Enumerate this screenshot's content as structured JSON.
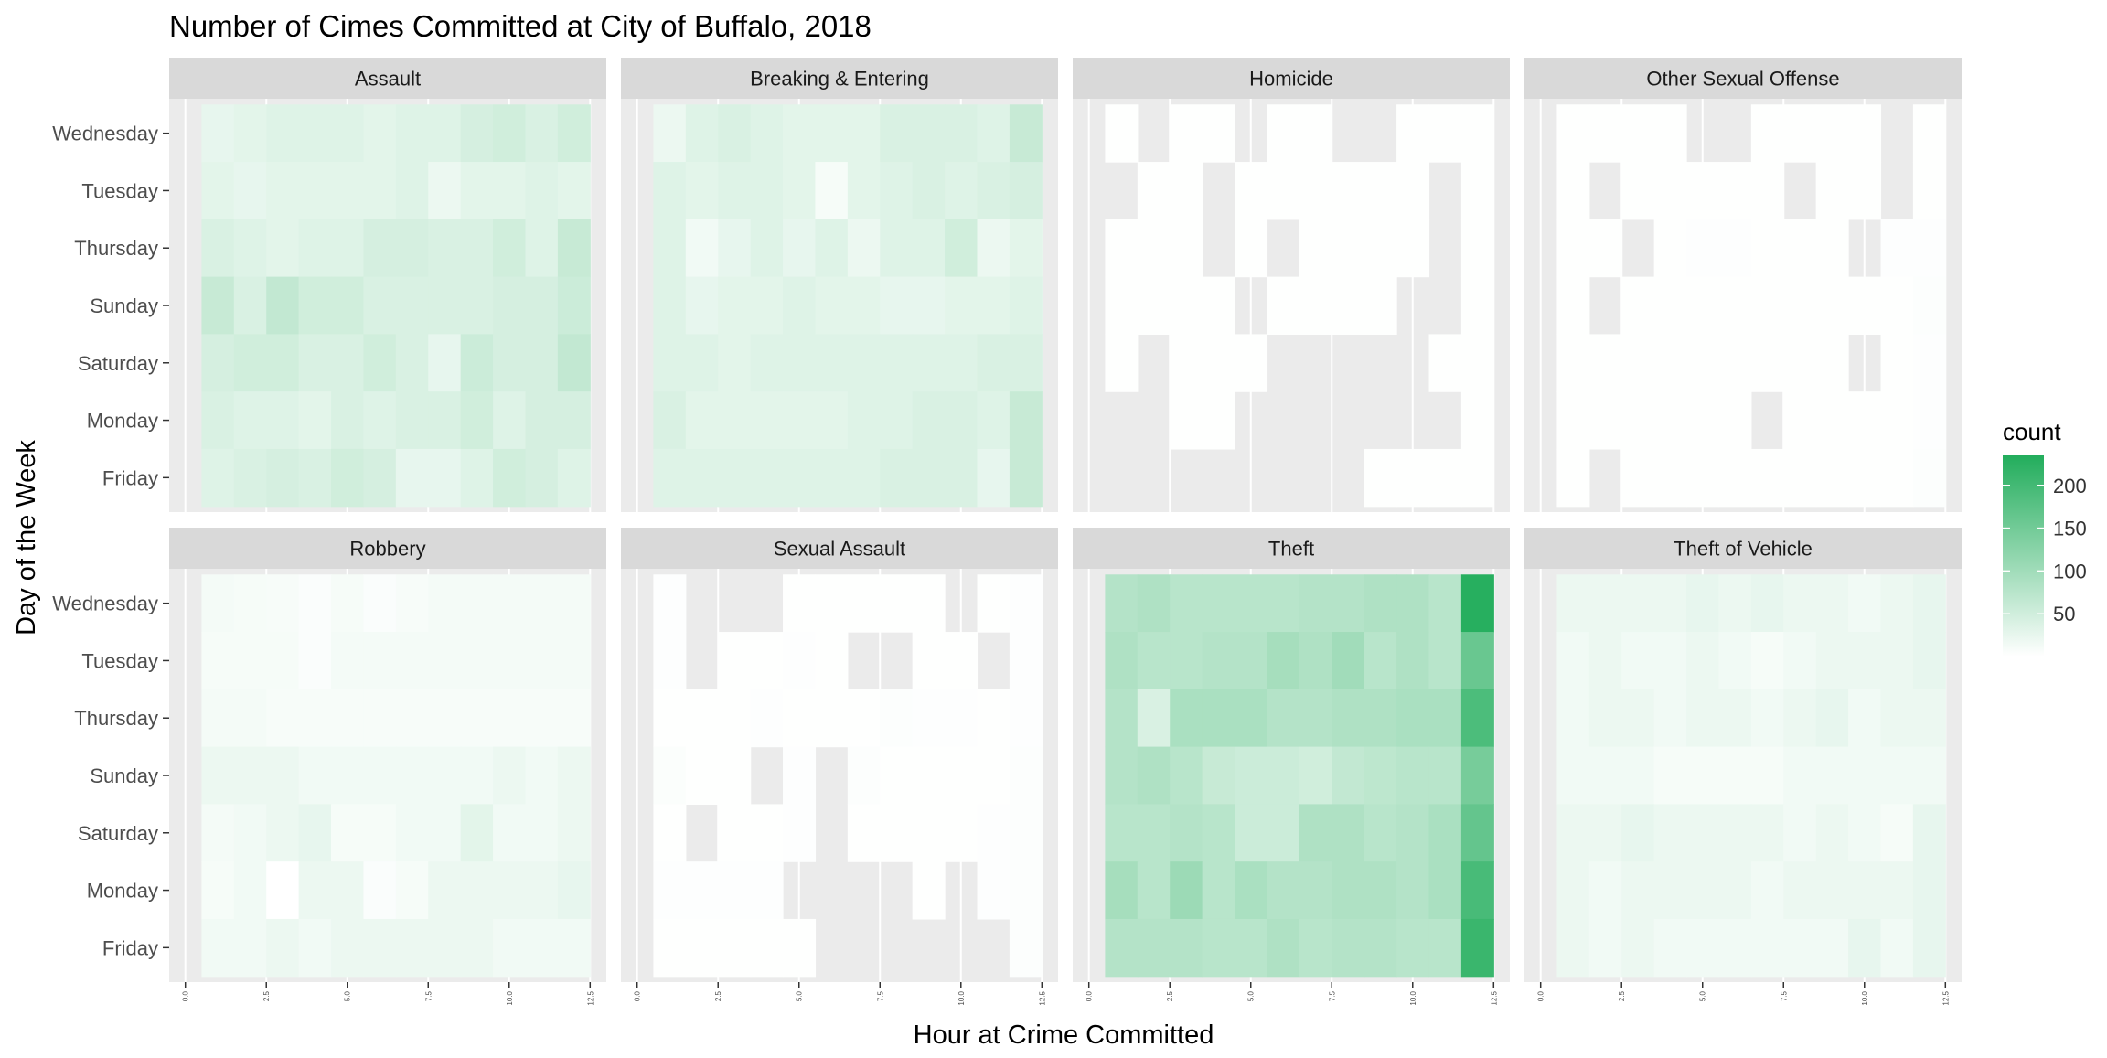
{
  "chart_data": {
    "type": "heatmap",
    "title": "Number of Cimes Committed  at City of Buffalo, 2018",
    "xlabel": "Hour at Crime Committed",
    "ylabel": "Day of the Week",
    "x_ticks": [
      "0.0",
      "2.5",
      "5.0",
      "7.5",
      "10.0",
      "12.5"
    ],
    "xlim": [
      0,
      12.5
    ],
    "days": [
      "Wednesday",
      "Tuesday",
      "Thursday",
      "Sunday",
      "Saturday",
      "Monday",
      "Friday"
    ],
    "hours": [
      1,
      2,
      3,
      4,
      5,
      6,
      7,
      8,
      9,
      10,
      11,
      12
    ],
    "legend": {
      "title": "count",
      "ticks": [
        50,
        100,
        150,
        200
      ],
      "min": 0,
      "max": 235,
      "low_color": "#ffffff",
      "high_color": "#22ad5c"
    },
    "na_color": "#ebebeb",
    "panels": [
      {
        "name": "Assault",
        "values": [
          [
            25,
            30,
            35,
            35,
            35,
            30,
            35,
            35,
            45,
            50,
            40,
            50
          ],
          [
            30,
            25,
            30,
            30,
            30,
            30,
            35,
            20,
            30,
            30,
            35,
            30
          ],
          [
            40,
            35,
            30,
            35,
            35,
            45,
            45,
            40,
            40,
            50,
            35,
            60
          ],
          [
            60,
            40,
            65,
            50,
            50,
            40,
            40,
            40,
            40,
            45,
            45,
            55
          ],
          [
            45,
            50,
            50,
            40,
            40,
            50,
            40,
            25,
            55,
            45,
            45,
            65
          ],
          [
            40,
            35,
            35,
            30,
            40,
            35,
            40,
            40,
            50,
            35,
            45,
            45
          ],
          [
            35,
            40,
            45,
            40,
            50,
            45,
            25,
            25,
            35,
            50,
            45,
            35
          ]
        ]
      },
      {
        "name": "Breaking & Entering",
        "values": [
          [
            20,
            35,
            40,
            35,
            30,
            30,
            30,
            40,
            40,
            40,
            35,
            60
          ],
          [
            35,
            30,
            35,
            35,
            30,
            10,
            30,
            35,
            40,
            35,
            40,
            45
          ],
          [
            35,
            15,
            25,
            35,
            25,
            35,
            20,
            35,
            35,
            50,
            20,
            30
          ],
          [
            35,
            25,
            30,
            30,
            35,
            30,
            30,
            25,
            25,
            30,
            30,
            35
          ],
          [
            35,
            35,
            30,
            35,
            35,
            35,
            35,
            35,
            35,
            35,
            40,
            40
          ],
          [
            40,
            30,
            30,
            30,
            30,
            30,
            35,
            35,
            40,
            40,
            35,
            60
          ],
          [
            35,
            35,
            35,
            35,
            35,
            35,
            35,
            40,
            40,
            40,
            25,
            60
          ]
        ]
      },
      {
        "name": "Homicide",
        "values": [
          [
            1,
            null,
            1,
            1,
            null,
            1,
            1,
            null,
            null,
            1,
            1,
            1
          ],
          [
            null,
            1,
            1,
            null,
            1,
            1,
            1,
            1,
            1,
            1,
            null,
            1
          ],
          [
            1,
            1,
            1,
            null,
            1,
            null,
            1,
            1,
            1,
            1,
            null,
            1
          ],
          [
            1,
            1,
            1,
            1,
            null,
            1,
            1,
            1,
            1,
            null,
            null,
            1
          ],
          [
            1,
            null,
            1,
            1,
            1,
            null,
            null,
            null,
            null,
            null,
            1,
            1
          ],
          [
            null,
            null,
            1,
            1,
            null,
            null,
            null,
            null,
            null,
            null,
            null,
            1
          ],
          [
            null,
            null,
            null,
            null,
            null,
            null,
            null,
            null,
            1,
            1,
            1,
            1
          ]
        ]
      },
      {
        "name": "Other Sexual Offense",
        "values": [
          [
            1,
            1,
            1,
            1,
            null,
            null,
            1,
            1,
            1,
            1,
            null,
            1
          ],
          [
            1,
            null,
            1,
            1,
            1,
            1,
            1,
            null,
            1,
            1,
            null,
            1
          ],
          [
            1,
            1,
            null,
            1,
            2,
            2,
            1,
            1,
            1,
            null,
            2,
            2
          ],
          [
            1,
            null,
            1,
            1,
            1,
            1,
            1,
            1,
            1,
            1,
            1,
            3
          ],
          [
            1,
            1,
            1,
            1,
            1,
            1,
            1,
            1,
            1,
            null,
            1,
            2
          ],
          [
            1,
            1,
            1,
            1,
            1,
            1,
            null,
            1,
            1,
            1,
            1,
            2
          ],
          [
            1,
            null,
            1,
            1,
            1,
            1,
            1,
            1,
            1,
            1,
            1,
            3
          ]
        ]
      },
      {
        "name": "Robbery",
        "values": [
          [
            12,
            10,
            8,
            5,
            10,
            5,
            8,
            12,
            12,
            12,
            12,
            12
          ],
          [
            10,
            10,
            10,
            5,
            12,
            12,
            12,
            12,
            12,
            12,
            12,
            12
          ],
          [
            12,
            12,
            8,
            8,
            8,
            8,
            8,
            8,
            8,
            8,
            8,
            8
          ],
          [
            20,
            20,
            20,
            15,
            15,
            15,
            15,
            15,
            15,
            20,
            15,
            20
          ],
          [
            12,
            15,
            20,
            25,
            10,
            10,
            15,
            15,
            30,
            15,
            15,
            20
          ],
          [
            10,
            15,
            0,
            20,
            20,
            5,
            10,
            20,
            20,
            20,
            20,
            25
          ],
          [
            15,
            15,
            20,
            15,
            20,
            20,
            20,
            20,
            20,
            15,
            15,
            15
          ]
        ]
      },
      {
        "name": "Sexual Assault",
        "values": [
          [
            2,
            null,
            null,
            null,
            1,
            1,
            1,
            1,
            1,
            null,
            1,
            2
          ],
          [
            2,
            null,
            1,
            1,
            2,
            1,
            null,
            null,
            1,
            1,
            null,
            2
          ],
          [
            1,
            1,
            1,
            2,
            1,
            1,
            1,
            3,
            2,
            2,
            1,
            2
          ],
          [
            4,
            1,
            1,
            null,
            2,
            null,
            3,
            1,
            1,
            1,
            1,
            3
          ],
          [
            1,
            null,
            1,
            1,
            2,
            null,
            1,
            1,
            1,
            1,
            2,
            3
          ],
          [
            2,
            2,
            2,
            2,
            null,
            null,
            null,
            null,
            1,
            null,
            2,
            3
          ],
          [
            1,
            1,
            1,
            1,
            1,
            null,
            null,
            null,
            null,
            null,
            null,
            3
          ]
        ]
      },
      {
        "name": "Theft",
        "values": [
          [
            80,
            85,
            75,
            75,
            75,
            75,
            80,
            80,
            85,
            85,
            75,
            230
          ],
          [
            85,
            75,
            75,
            80,
            80,
            95,
            85,
            100,
            75,
            85,
            75,
            160
          ],
          [
            80,
            40,
            90,
            90,
            90,
            80,
            80,
            85,
            85,
            90,
            90,
            190
          ],
          [
            80,
            85,
            75,
            60,
            55,
            55,
            50,
            65,
            70,
            75,
            75,
            145
          ],
          [
            75,
            75,
            80,
            75,
            55,
            55,
            85,
            85,
            75,
            80,
            90,
            165
          ],
          [
            95,
            75,
            105,
            75,
            90,
            80,
            80,
            85,
            85,
            80,
            90,
            195
          ],
          [
            80,
            80,
            80,
            75,
            75,
            85,
            75,
            80,
            80,
            75,
            75,
            210
          ]
        ]
      },
      {
        "name": "Theft of Vehicle",
        "values": [
          [
            20,
            20,
            20,
            20,
            25,
            20,
            25,
            20,
            20,
            15,
            20,
            25
          ],
          [
            15,
            20,
            15,
            15,
            20,
            15,
            10,
            15,
            20,
            20,
            20,
            25
          ],
          [
            15,
            20,
            20,
            15,
            20,
            20,
            15,
            20,
            25,
            15,
            20,
            20
          ],
          [
            15,
            15,
            15,
            10,
            10,
            10,
            10,
            15,
            15,
            15,
            15,
            15
          ],
          [
            20,
            20,
            25,
            20,
            20,
            20,
            20,
            15,
            20,
            15,
            10,
            25
          ],
          [
            20,
            15,
            20,
            20,
            20,
            20,
            15,
            20,
            20,
            20,
            20,
            25
          ],
          [
            20,
            15,
            20,
            15,
            15,
            15,
            15,
            15,
            15,
            25,
            15,
            25
          ]
        ]
      }
    ]
  }
}
